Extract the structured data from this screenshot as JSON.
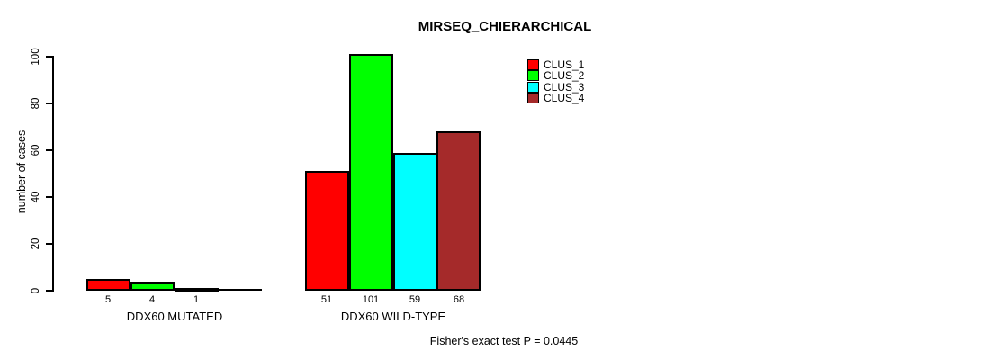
{
  "title": "MIRSEQ_CHIERARCHICAL",
  "ylabel": "number of cases",
  "footer": "Fisher's exact test P = 0.0445",
  "legend": {
    "position": "top-right",
    "entries": [
      {
        "label": "CLUS_1",
        "color": "#FF0000"
      },
      {
        "label": "CLUS_2",
        "color": "#00FF00"
      },
      {
        "label": "CLUS_3",
        "color": "#00FFFF"
      },
      {
        "label": "CLUS_4",
        "color": "#A52A2A"
      }
    ]
  },
  "chart_data": {
    "type": "bar",
    "title": "MIRSEQ_CHIERARCHICAL",
    "xlabel": "",
    "ylabel": "number of cases",
    "ylim": [
      0,
      100
    ],
    "yticks": [
      0,
      20,
      40,
      60,
      80,
      100
    ],
    "grid": false,
    "legend_position": "top-right",
    "series": [
      "CLUS_1",
      "CLUS_2",
      "CLUS_3",
      "CLUS_4"
    ],
    "series_colors": [
      "#FF0000",
      "#00FF00",
      "#00FFFF",
      "#A52A2A"
    ],
    "groups": [
      {
        "label": "DDX60 MUTATED",
        "values": [
          5,
          4,
          1,
          0
        ],
        "value_labels": [
          "5",
          "4",
          "1",
          ""
        ]
      },
      {
        "label": "DDX60 WILD-TYPE",
        "values": [
          51,
          101,
          59,
          68
        ],
        "value_labels": [
          "51",
          "101",
          "59",
          "68"
        ]
      }
    ],
    "annotation": "Fisher's exact test P = 0.0445"
  }
}
